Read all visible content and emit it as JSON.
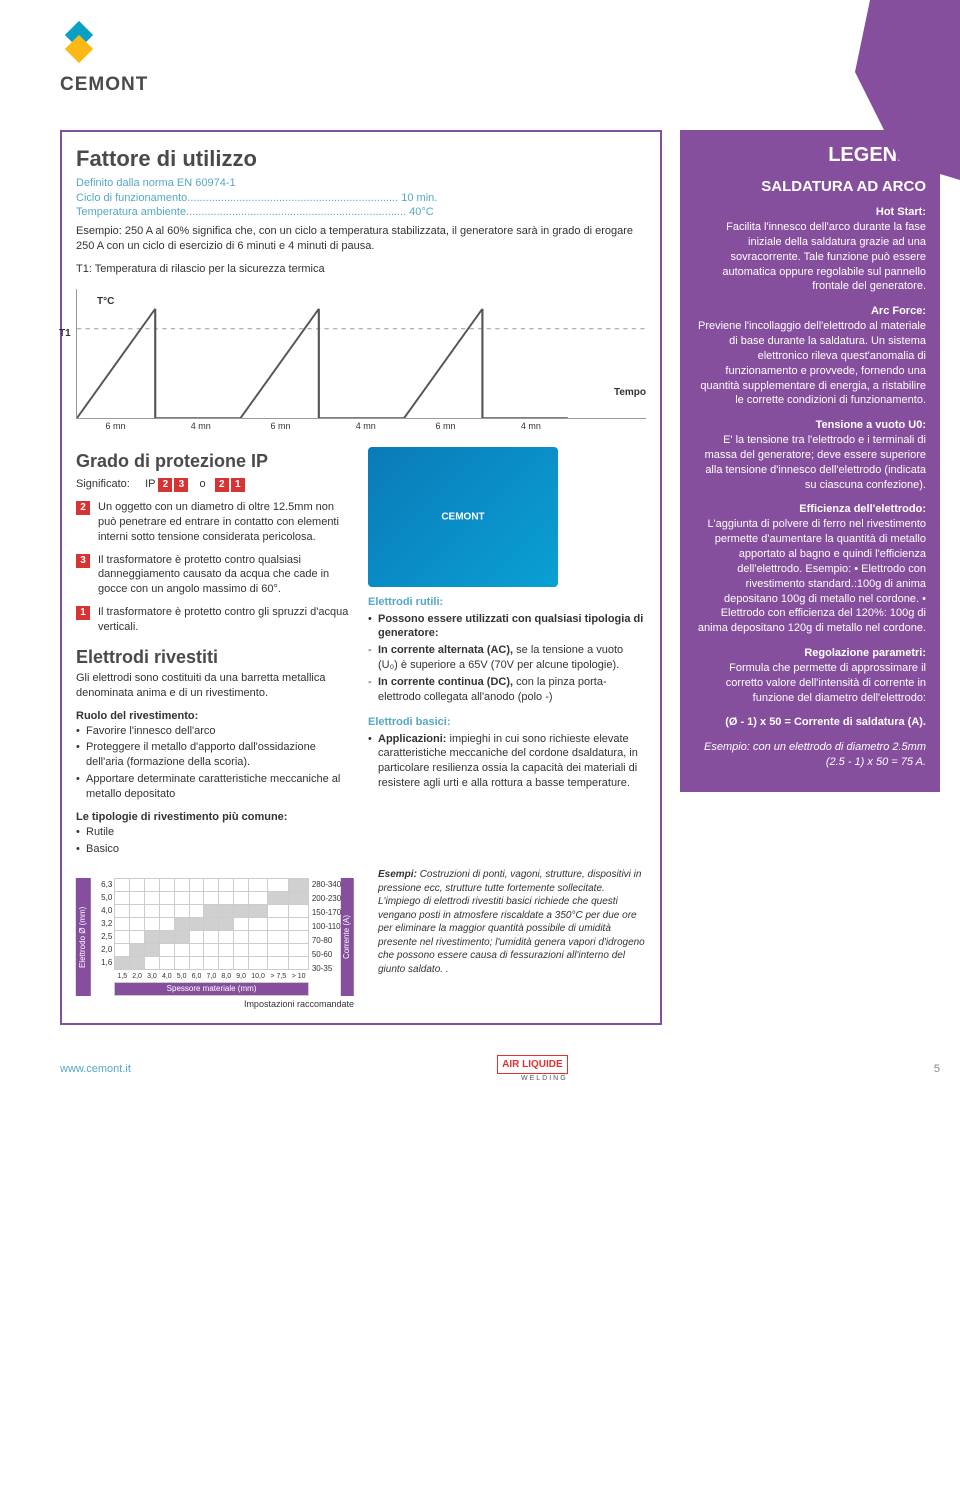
{
  "brand": {
    "name": "CEMONT",
    "url": "www.cemont.it",
    "page": "5",
    "footer_brand": "AIR LIQUIDE",
    "footer_sub": "WELDING"
  },
  "decor_color": "#864f9d",
  "fattore": {
    "title": "Fattore di utilizzo",
    "subtitle": "Definito dalla norma EN 60974-1",
    "line1a": "Ciclo di funzionamento",
    "line1b": "10 min.",
    "line2a": "Temperatura ambiente",
    "line2b": "40°C",
    "body": "Esempio: 250 A al 60% significa che, con un ciclo a temperatura stabilizzata, il generatore sarà in grado di erogare 250 A con un ciclo di esercizio di 6 minuti e 4 minuti di pausa.",
    "t1": "T1: Temperatura di rilascio per la sicurezza termica",
    "chart": {
      "tc": "T°C",
      "t1": "T1",
      "tempo": "Tempo",
      "labels": [
        "6 mn",
        "4 mn",
        "6 mn",
        "4 mn",
        "6 mn",
        "4 mn"
      ]
    }
  },
  "ip": {
    "title": "Grado di protezione IP",
    "sig": "Significato:",
    "ip_label": "IP",
    "o": "o",
    "codes1": [
      "2",
      "3"
    ],
    "codes2": [
      "2",
      "1"
    ],
    "items": [
      {
        "n": "2",
        "t": "Un oggetto con un diametro di oltre 12.5mm non può penetrare ed entrare in contatto con elementi interni sotto tensione considerata pericolosa."
      },
      {
        "n": "3",
        "t": "Il trasformatore è protetto contro qualsiasi danneggiamento causato da acqua che cade in gocce con un angolo massimo di 60°."
      },
      {
        "n": "1",
        "t": "Il trasformatore è protetto contro gli spruzzi d'acqua verticali."
      }
    ]
  },
  "elettrodi": {
    "title": "Elettrodi rivestiti",
    "intro": "Gli elettrodi sono costituiti da una barretta metallica denominata anima e di un rivestimento.",
    "ruolo_h": "Ruolo del rivestimento:",
    "ruolo": [
      "Favorire l'innesco dell'arco",
      "Proteggere il metallo d'apporto dall'ossidazione dell'aria (formazione della scoria).",
      "Apportare determinate caratteristiche meccaniche al metallo depositato"
    ],
    "tip_h": "Le tipologie di rivestimento più comune:",
    "tip": [
      "Rutile",
      "Basico"
    ]
  },
  "rutili": {
    "h": "Elettrodi rutili:",
    "p1": "Possono essere utilizzati con qualsiasi tipologia di generatore:",
    "items": [
      "In corrente alternata (AC), se la tensione a vuoto (U₀) è superiore a 65V (70V per alcune tipologie).",
      "In corrente continua (DC), con la pinza porta-elettrodo collegata all'anodo (polo -)"
    ]
  },
  "basici": {
    "h": "Elettrodi basici:",
    "p1": "Applicazioni: impieghi in cui sono richieste elevate caratteristiche meccaniche del cordone dsaldatura, in particolare resilienza ossia la capacità dei materiali di resistere agli urti e alla rottura a basse temperature.",
    "es_h": "Esempi:",
    "es": "Costruzioni di ponti, vagoni, strutture, dispositivi in pressione ecc, strutture tutte fortemente sollecitate. L'impiego di elettrodi rivestiti basici richiede che questi vengano posti in atmosfere riscaldate a 350°C per due ore per eliminare la maggior quantità possibile di umidità presente nel rivestimento; l'umidità genera vapori d'idrogeno che possono essere causa di fessurazioni all'interno del giunto saldato. ."
  },
  "table": {
    "ylabel": "Elettrodo Ø (mm)",
    "xlabel": "Spessore materiale (mm)",
    "rlabel": "Corrente (A)",
    "caption": "Impostazioni raccomandate",
    "yvals": [
      "6,3",
      "5,0",
      "4,0",
      "3,2",
      "2,5",
      "2,0",
      "1,6"
    ],
    "xvals": [
      "1,5",
      "2,0",
      "3,0",
      "4,0",
      "5,0",
      "6,0",
      "7,0",
      "8,0",
      "9,0",
      "10,0",
      "> 7,5",
      "> 10"
    ],
    "rvals": [
      "280-340",
      "200-230",
      "150-170",
      "100-110",
      "70-80",
      "50-60",
      "30-35"
    ],
    "fills": [
      [
        0,
        0,
        0,
        0,
        0,
        0,
        0,
        0,
        0,
        0,
        0,
        1
      ],
      [
        0,
        0,
        0,
        0,
        0,
        0,
        0,
        0,
        0,
        0,
        1,
        1
      ],
      [
        0,
        0,
        0,
        0,
        0,
        0,
        1,
        1,
        1,
        1,
        0,
        0
      ],
      [
        0,
        0,
        0,
        0,
        1,
        1,
        1,
        1,
        0,
        0,
        0,
        0
      ],
      [
        0,
        0,
        1,
        1,
        1,
        0,
        0,
        0,
        0,
        0,
        0,
        0
      ],
      [
        0,
        1,
        1,
        0,
        0,
        0,
        0,
        0,
        0,
        0,
        0,
        0
      ],
      [
        1,
        1,
        0,
        0,
        0,
        0,
        0,
        0,
        0,
        0,
        0,
        0
      ]
    ]
  },
  "legenda": {
    "title": "LEGENDA",
    "sub": "SALDATURA AD ARCO",
    "sections": [
      {
        "h": "Hot Start:",
        "t": "Facilita l'innesco dell'arco durante la fase iniziale della saldatura grazie ad una sovracorrente. Tale funzione può essere automatica oppure regolabile sul pannello frontale del generatore."
      },
      {
        "h": "Arc Force:",
        "t": "Previene l'incollaggio dell'elettrodo al materiale di base durante la saldatura. Un sistema elettronico rileva quest'anomalia di funzionamento e provvede, fornendo una quantità supplementare di energia, a ristabilire le corrette condizioni di funzionamento."
      },
      {
        "h": "Tensione a vuoto U0:",
        "t": "E' la tensione tra l'elettrodo e i terminali di massa del generatore; deve essere superiore alla tensione d'innesco dell'elettrodo (indicata su ciascuna confezione)."
      },
      {
        "h": "Efficienza dell'elettrodo:",
        "t": "L'aggiunta di polvere di ferro nel rivestimento permette d'aumentare la quantità di metallo apportato al bagno e quindi l'efficienza dell'elettrodo. Esempio: • Elettrodo con rivestimento standard.:100g di anima depositano 100g di metallo nel cordone. • Elettrodo con efficienza del 120%: 100g di anima depositano 120g di metallo nel cordone."
      },
      {
        "h": "Regolazione parametri:",
        "t": "Formula che permette di approssimare il corretto valore dell'intensità di corrente in funzione del diametro dell'elettrodo:"
      }
    ],
    "formula": "(Ø - 1) x 50 = Corrente di saldatura (A).",
    "esempio": "Esempio: con un elettrodo di diametro 2.5mm (2.5 - 1) x 50 = 75 A."
  }
}
